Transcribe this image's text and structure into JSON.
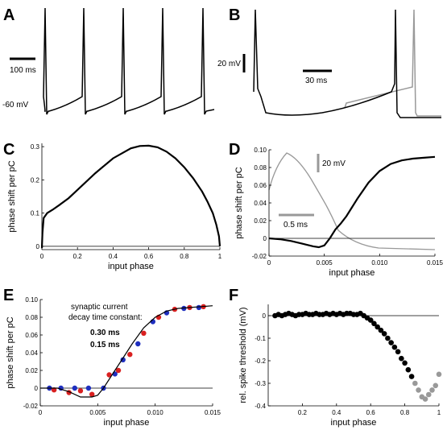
{
  "panels": {
    "A": {
      "label": "A",
      "scale_time_label": "100 ms",
      "baseline_label": "-60 mV",
      "trace": {
        "spike_count": 5,
        "type": "tonic spiking"
      }
    },
    "B": {
      "label": "B",
      "scale_voltage_label": "20 mV",
      "scale_time_label": "30 ms",
      "trace_colors": {
        "control": "#000000",
        "perturbed": "#999999"
      }
    },
    "C": {
      "label": "C"
    },
    "D": {
      "label": "D",
      "inset_voltage_label": "20 mV",
      "inset_time_label": "0.5 ms",
      "inset_color": "#999999"
    },
    "E": {
      "label": "E",
      "legend_title_line1": "synaptic current",
      "legend_title_line2": "decay time constant:",
      "legend_items": [
        {
          "label": "0.30 ms",
          "color": "#1f2fbf"
        },
        {
          "label": "0.15 ms",
          "color": "#d92020"
        }
      ]
    },
    "F": {
      "label": "F"
    }
  },
  "chart_data": [
    {
      "panel": "C",
      "type": "line",
      "xlabel": "input phase",
      "ylabel": "phase shift per pC",
      "xlim": [
        0,
        1
      ],
      "ylim": [
        -0.01,
        0.31
      ],
      "xticks": [
        "0",
        "0.2",
        "0.4",
        "0.6",
        "0.8",
        "1"
      ],
      "yticks": [
        "0",
        "0.1",
        "0.2",
        "0.3"
      ],
      "ytick_values": [
        0,
        0.1,
        0.2,
        0.3
      ],
      "series": [
        {
          "x": [
            0,
            0.003,
            0.01,
            0.03,
            0.06,
            0.1,
            0.15,
            0.2,
            0.3,
            0.4,
            0.5,
            0.55,
            0.6,
            0.65,
            0.7,
            0.75,
            0.8,
            0.85,
            0.9,
            0.93,
            0.96,
            0.98,
            0.995,
            1.0
          ],
          "y": [
            -0.005,
            0.04,
            0.085,
            0.1,
            0.11,
            0.125,
            0.145,
            0.17,
            0.22,
            0.265,
            0.295,
            0.302,
            0.303,
            0.298,
            0.285,
            0.265,
            0.238,
            0.205,
            0.165,
            0.135,
            0.1,
            0.065,
            0.03,
            0.0
          ]
        }
      ]
    },
    {
      "panel": "D",
      "type": "line",
      "xlabel": "input phase",
      "ylabel": "phase shift per pC",
      "xlim": [
        0,
        0.015
      ],
      "ylim": [
        -0.02,
        0.1
      ],
      "xticks": [
        "0",
        "0.005",
        "0.010",
        "0.015"
      ],
      "xtick_values": [
        0,
        0.005,
        0.01,
        0.015
      ],
      "yticks": [
        "-0.02",
        "0",
        "0.02",
        "0.04",
        "0.06",
        "0.08",
        "0.10"
      ],
      "ytick_values": [
        -0.02,
        0,
        0.02,
        0.04,
        0.06,
        0.08,
        0.1
      ],
      "series": [
        {
          "x": [
            0,
            0.001,
            0.002,
            0.003,
            0.004,
            0.0045,
            0.005,
            0.0055,
            0.006,
            0.0065,
            0.007,
            0.0075,
            0.008,
            0.009,
            0.01,
            0.011,
            0.012,
            0.013,
            0.014,
            0.015
          ],
          "y": [
            0,
            -0.001,
            -0.003,
            -0.006,
            -0.009,
            -0.01,
            -0.008,
            0.0,
            0.01,
            0.017,
            0.025,
            0.035,
            0.045,
            0.063,
            0.076,
            0.084,
            0.088,
            0.09,
            0.091,
            0.092
          ]
        }
      ]
    },
    {
      "panel": "E",
      "type": "scatter",
      "xlabel": "input phase",
      "ylabel": "phase shift per pC",
      "xlim": [
        0,
        0.015
      ],
      "ylim": [
        -0.02,
        0.1
      ],
      "xticks": [
        "0",
        "0.005",
        "0.010",
        "0.015"
      ],
      "xtick_values": [
        0,
        0.005,
        0.01,
        0.015
      ],
      "yticks": [
        "-0.02",
        "0",
        "0.02",
        "0.04",
        "0.06",
        "0.08",
        "0.10"
      ],
      "ytick_values": [
        -0.02,
        0,
        0.02,
        0.04,
        0.06,
        0.08,
        0.1
      ],
      "series": [
        {
          "name": "0.30 ms",
          "color": "#1f2fbf",
          "x": [
            0.0008,
            0.0018,
            0.003,
            0.0042,
            0.0055,
            0.0065,
            0.0072,
            0.0085,
            0.0098,
            0.011,
            0.0125,
            0.0138
          ],
          "y": [
            0.0,
            0.0,
            0.0,
            0.0,
            0.0,
            0.016,
            0.032,
            0.05,
            0.075,
            0.085,
            0.09,
            0.091
          ]
        },
        {
          "name": "0.15 ms",
          "color": "#d92020",
          "x": [
            0.0012,
            0.0025,
            0.0035,
            0.0045,
            0.006,
            0.0068,
            0.0078,
            0.009,
            0.0103,
            0.0117,
            0.013,
            0.0142
          ],
          "y": [
            -0.002,
            -0.005,
            -0.003,
            -0.007,
            0.015,
            0.02,
            0.038,
            0.062,
            0.08,
            0.089,
            0.091,
            0.092
          ]
        },
        {
          "name": "",
          "color": "#000000",
          "style": "line",
          "x": [
            0,
            0.0015,
            0.0025,
            0.0035,
            0.0045,
            0.005,
            0.0055,
            0.006,
            0.0065,
            0.007,
            0.008,
            0.009,
            0.01,
            0.011,
            0.012,
            0.013,
            0.014,
            0.015
          ],
          "y": [
            0,
            0,
            -0.004,
            -0.01,
            -0.01,
            -0.008,
            0.0,
            0.01,
            0.02,
            0.03,
            0.05,
            0.068,
            0.08,
            0.087,
            0.09,
            0.091,
            0.092,
            0.093
          ]
        }
      ]
    },
    {
      "panel": "F",
      "type": "scatter",
      "xlabel": "input phase",
      "ylabel": "rel. spike threshold (mV)",
      "xlim": [
        0,
        1
      ],
      "ylim": [
        -0.4,
        0.05
      ],
      "xticks": [
        "0.2",
        "0.4",
        "0.6",
        "0.8",
        "1"
      ],
      "xtick_values": [
        0.2,
        0.4,
        0.6,
        0.8,
        1
      ],
      "yticks": [
        "0",
        "-0.1",
        "-0.2",
        "-0.3",
        "-0.4"
      ],
      "ytick_values": [
        0,
        -0.1,
        -0.2,
        -0.3,
        -0.4
      ],
      "series": [
        {
          "name": "",
          "color": "#000000",
          "x": [
            0.04,
            0.06,
            0.08,
            0.1,
            0.12,
            0.14,
            0.16,
            0.18,
            0.2,
            0.22,
            0.24,
            0.26,
            0.28,
            0.3,
            0.32,
            0.34,
            0.36,
            0.38,
            0.4,
            0.42,
            0.44,
            0.46,
            0.48,
            0.5,
            0.52,
            0.54,
            0.56,
            0.58,
            0.6,
            0.62,
            0.64,
            0.66,
            0.68,
            0.7,
            0.72,
            0.74,
            0.76,
            0.78,
            0.8,
            0.82,
            0.84
          ],
          "y": [
            0.0,
            0.005,
            0.0,
            0.005,
            0.01,
            0.005,
            0.0,
            0.005,
            0.005,
            0.01,
            0.005,
            0.005,
            0.01,
            0.005,
            0.005,
            0.01,
            0.005,
            0.01,
            0.005,
            0.01,
            0.005,
            0.01,
            0.01,
            0.005,
            0.005,
            0.01,
            0.0,
            -0.01,
            -0.02,
            -0.035,
            -0.05,
            -0.065,
            -0.08,
            -0.1,
            -0.12,
            -0.14,
            -0.16,
            -0.19,
            -0.21,
            -0.24,
            -0.27
          ]
        },
        {
          "name": "",
          "color": "#999999",
          "x": [
            0.86,
            0.88,
            0.9,
            0.92,
            0.94,
            0.96,
            0.98,
            1.0
          ],
          "y": [
            -0.3,
            -0.33,
            -0.36,
            -0.37,
            -0.35,
            -0.33,
            -0.31,
            -0.26
          ]
        }
      ]
    }
  ]
}
